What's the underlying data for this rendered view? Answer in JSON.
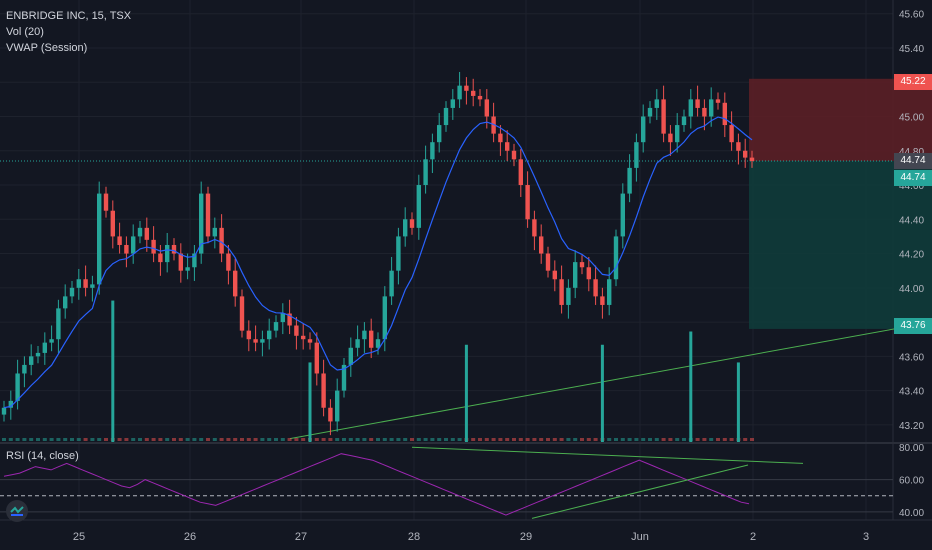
{
  "legend": {
    "symbol": "ENBRIDGE INC, 15, TSX",
    "volume": "Vol (20)",
    "vwap": "VWAP (Session)"
  },
  "rsi_legend": "RSI (14, close)",
  "price_axis": {
    "ticks": [
      "45.60",
      "45.40",
      "45.20",
      "45.00",
      "44.80",
      "44.60",
      "44.40",
      "44.20",
      "44.00",
      "43.80",
      "43.60",
      "43.40",
      "43.20"
    ],
    "values": [
      45.6,
      45.4,
      45.2,
      45.0,
      44.8,
      44.6,
      44.4,
      44.2,
      44.0,
      43.8,
      43.6,
      43.4,
      43.2
    ]
  },
  "rsi_axis": {
    "ticks": [
      "80.00",
      "60.00",
      "40.00"
    ],
    "values": [
      80,
      60,
      40
    ]
  },
  "time_axis": {
    "labels": [
      "25",
      "26",
      "27",
      "28",
      "29",
      "Jun",
      "2",
      "3"
    ]
  },
  "tags": {
    "stop": "45.22",
    "current": "44.74",
    "entry": "44.74",
    "target": "43.76"
  },
  "colors": {
    "up": "#26a69a",
    "down": "#ef5350",
    "vwap": "#2962ff",
    "rsi": "#9c27b0",
    "trend": "#4caf50",
    "stop_zone": "#5b1f26",
    "target_zone": "#0f3b3a"
  },
  "chart_data": {
    "type": "candlestick",
    "price_range": [
      43.1,
      45.68
    ],
    "rsi_range": [
      35,
      82
    ],
    "close_path": [
      43.3,
      43.34,
      43.5,
      43.55,
      43.6,
      43.62,
      43.68,
      43.7,
      43.88,
      43.95,
      44.0,
      44.05,
      44.0,
      44.02,
      44.55,
      44.45,
      44.3,
      44.25,
      44.2,
      44.3,
      44.35,
      44.28,
      44.2,
      44.15,
      44.25,
      44.2,
      44.1,
      44.12,
      44.2,
      44.55,
      44.3,
      44.35,
      44.2,
      44.1,
      43.95,
      43.75,
      43.7,
      43.68,
      43.7,
      43.75,
      43.8,
      43.85,
      43.78,
      43.72,
      43.7,
      43.68,
      43.5,
      43.3,
      43.22,
      43.4,
      43.55,
      43.65,
      43.7,
      43.75,
      43.65,
      43.7,
      43.95,
      44.1,
      44.3,
      44.4,
      44.35,
      44.6,
      44.75,
      44.85,
      44.95,
      45.05,
      45.1,
      45.18,
      45.15,
      45.12,
      45.1,
      45.0,
      44.9,
      44.85,
      44.8,
      44.75,
      44.6,
      44.4,
      44.3,
      44.2,
      44.1,
      44.05,
      43.9,
      44.0,
      44.15,
      44.12,
      44.05,
      43.95,
      43.9,
      44.05,
      44.3,
      44.55,
      44.7,
      44.85,
      45.0,
      45.05,
      45.1,
      44.9,
      44.85,
      44.95,
      45.0,
      45.1,
      45.05,
      45.0,
      45.1,
      45.08,
      44.95,
      44.85,
      44.8,
      44.76,
      44.74
    ],
    "volume_spikes": [
      {
        "candle": 16,
        "level": 0.32
      },
      {
        "candle": 45,
        "level": 0.18
      },
      {
        "candle": 68,
        "level": 0.22
      },
      {
        "candle": 88,
        "level": 0.22
      },
      {
        "candle": 101,
        "level": 0.25
      },
      {
        "candle": 108,
        "level": 0.18
      }
    ],
    "rsi_path": [
      62,
      63,
      64,
      66,
      68,
      67,
      66,
      68,
      70,
      68,
      66,
      64,
      62,
      60,
      58,
      56,
      55,
      57,
      60,
      58,
      56,
      54,
      52,
      50,
      48,
      46,
      45,
      44,
      46,
      48,
      50,
      52,
      54,
      56,
      58,
      60,
      62,
      64,
      66,
      68,
      70,
      72,
      74,
      76,
      75,
      74,
      73,
      72,
      70,
      68,
      66,
      64,
      62,
      60,
      58,
      56,
      54,
      52,
      50,
      48,
      46,
      44,
      42,
      40,
      38,
      40,
      42,
      44,
      46,
      48,
      50,
      52,
      54,
      56,
      58,
      60,
      62,
      64,
      66,
      68,
      70,
      72,
      70,
      68,
      66,
      64,
      62,
      60,
      58,
      56,
      54,
      52,
      50,
      48,
      46,
      45
    ]
  }
}
